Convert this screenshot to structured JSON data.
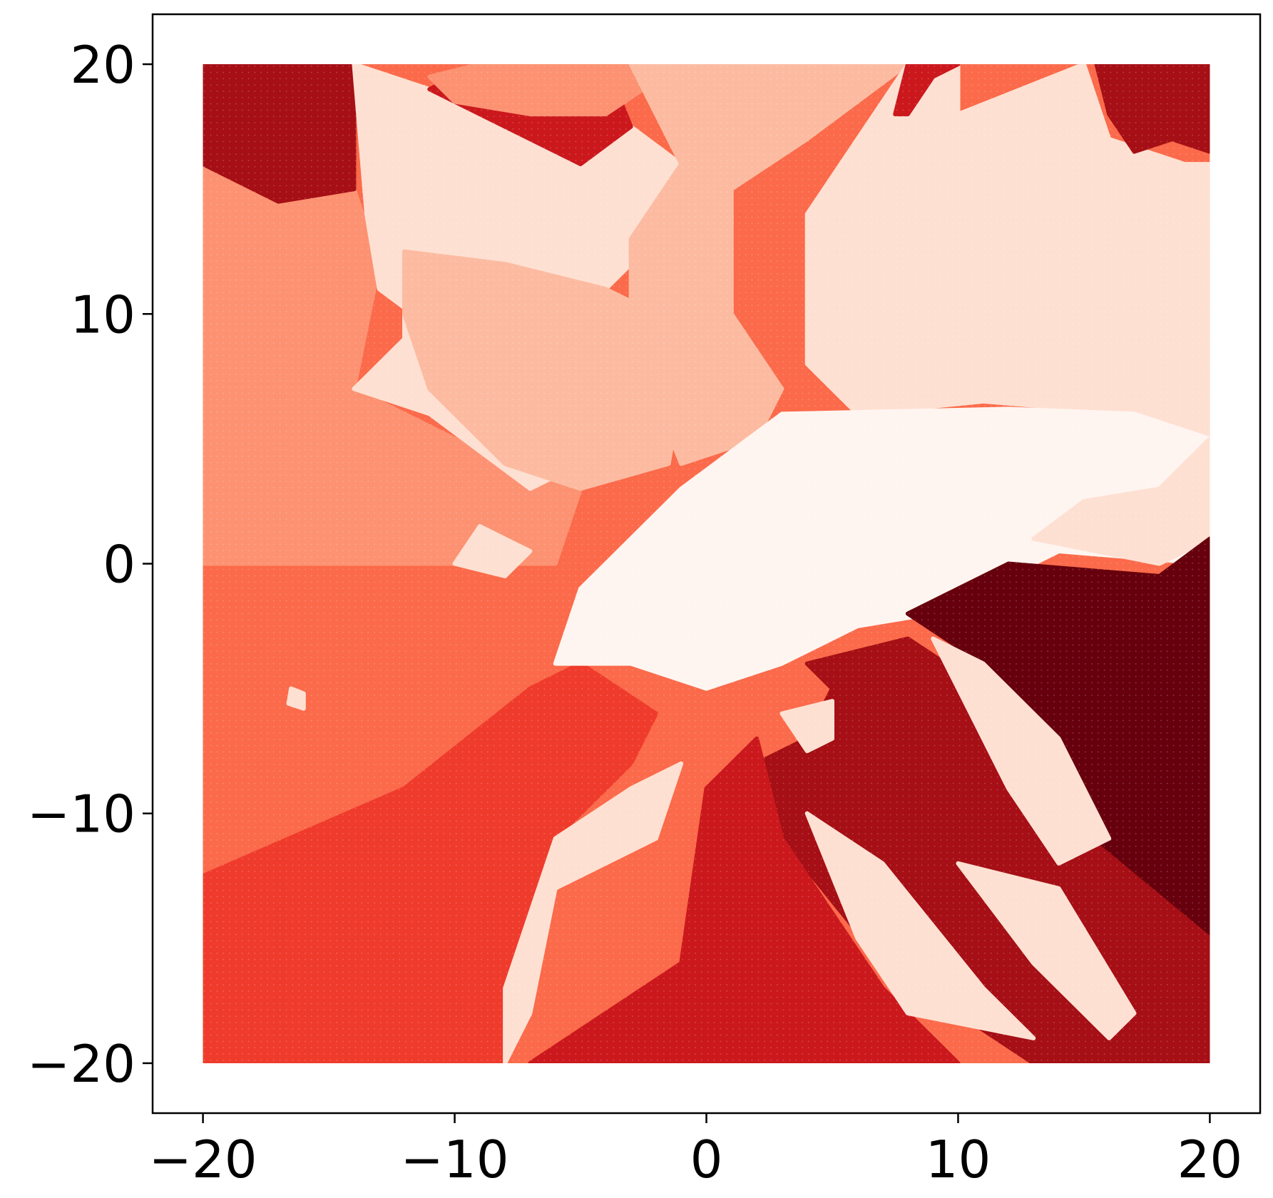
{
  "chart_data": {
    "type": "heatmap",
    "title": "",
    "xlabel": "",
    "ylabel": "",
    "xlim": [
      -22,
      22
    ],
    "ylim": [
      -22,
      22
    ],
    "grid": false,
    "legend": "none",
    "colormap": "Reds",
    "palette": [
      "#fff5f0",
      "#fee0d2",
      "#fcbba1",
      "#fc9272",
      "#fb6a4a",
      "#ef3b2c",
      "#cb181d",
      "#a50f15",
      "#67000d"
    ],
    "grid_extent": {
      "x": [
        -20,
        20
      ],
      "y": [
        -20,
        20
      ]
    },
    "x_ticks": [
      -20,
      -10,
      0,
      10,
      20
    ],
    "y_ticks": [
      -20,
      -10,
      0,
      10,
      20
    ],
    "x_tick_labels": [
      "−20",
      "−10",
      "0",
      "10",
      "20"
    ],
    "y_tick_labels": [
      "−20",
      "−10",
      "0",
      "10",
      "20"
    ],
    "regions": [
      {
        "level": 4,
        "polygon": [
          [
            -20,
            0
          ],
          [
            -7,
            0
          ],
          [
            -7,
            -5
          ],
          [
            -12,
            -9
          ],
          [
            -20,
            -12.5
          ]
        ]
      },
      {
        "level": 5,
        "polygon": [
          [
            -20,
            -12.5
          ],
          [
            -12,
            -9
          ],
          [
            -7,
            -5
          ],
          [
            -5,
            -4
          ],
          [
            -2,
            -6
          ],
          [
            -3,
            -8
          ],
          [
            -6,
            -11
          ],
          [
            -8,
            -17
          ],
          [
            -8,
            -20
          ],
          [
            -20,
            -20
          ]
        ]
      },
      {
        "level": 3,
        "polygon": [
          [
            -20,
            16
          ],
          [
            -14,
            15
          ],
          [
            -13,
            12
          ],
          [
            -14,
            7
          ],
          [
            -8,
            4
          ],
          [
            -5,
            3
          ],
          [
            -6,
            0
          ],
          [
            -20,
            0
          ]
        ]
      },
      {
        "level": 7,
        "polygon": [
          [
            -20,
            20
          ],
          [
            -14,
            20
          ],
          [
            -14,
            15
          ],
          [
            -17,
            14.5
          ],
          [
            -20,
            16
          ]
        ]
      },
      {
        "level": 1,
        "polygon": [
          [
            -14,
            20
          ],
          [
            -11,
            19
          ],
          [
            -7,
            17.5
          ],
          [
            -5,
            16
          ],
          [
            -3,
            17.5
          ],
          [
            -1,
            16
          ],
          [
            -2,
            13
          ],
          [
            -4,
            11
          ],
          [
            -8,
            12
          ],
          [
            -12,
            12.5
          ],
          [
            -12,
            9
          ],
          [
            -14,
            7
          ],
          [
            -11,
            6
          ],
          [
            -7,
            3
          ],
          [
            -5,
            4
          ],
          [
            -9,
            8
          ],
          [
            -13,
            11
          ],
          [
            -13.5,
            14
          ]
        ]
      },
      {
        "level": 2,
        "polygon": [
          [
            -12,
            12.5
          ],
          [
            -8,
            12
          ],
          [
            -4,
            11
          ],
          [
            -2,
            10
          ],
          [
            -1,
            7
          ],
          [
            -1.5,
            4
          ],
          [
            -5,
            3
          ],
          [
            -8,
            4
          ],
          [
            -11,
            7
          ],
          [
            -12,
            10
          ]
        ]
      },
      {
        "level": 6,
        "polygon": [
          [
            -11,
            19
          ],
          [
            -9,
            20
          ],
          [
            -4,
            20
          ],
          [
            -3,
            17.5
          ],
          [
            -5,
            16
          ],
          [
            -7,
            17
          ],
          [
            -9,
            18
          ]
        ]
      },
      {
        "level": 3,
        "polygon": [
          [
            -11,
            19.5
          ],
          [
            -9,
            20
          ],
          [
            -1,
            20
          ],
          [
            -4,
            18
          ],
          [
            -7,
            18
          ],
          [
            -10,
            18.5
          ]
        ]
      },
      {
        "level": 2,
        "polygon": [
          [
            -3,
            20
          ],
          [
            8,
            20
          ],
          [
            4,
            17
          ],
          [
            1,
            15
          ],
          [
            1,
            10
          ],
          [
            3,
            7
          ],
          [
            2,
            5
          ],
          [
            -1,
            4
          ],
          [
            -3,
            9
          ],
          [
            -3,
            13
          ],
          [
            -1,
            16
          ],
          [
            -2,
            18
          ]
        ]
      },
      {
        "level": 1,
        "polygon": [
          [
            8,
            20
          ],
          [
            10,
            20
          ],
          [
            10,
            18
          ],
          [
            15,
            20
          ],
          [
            16,
            17
          ],
          [
            19,
            16
          ],
          [
            20,
            16
          ],
          [
            20,
            5
          ],
          [
            17,
            6
          ],
          [
            11,
            6.5
          ],
          [
            6,
            6
          ],
          [
            4,
            8
          ],
          [
            4,
            11
          ],
          [
            4,
            14
          ],
          [
            6,
            17
          ]
        ]
      },
      {
        "level": 6,
        "polygon": [
          [
            7.5,
            18
          ],
          [
            8,
            20
          ],
          [
            10,
            20
          ],
          [
            9,
            19.5
          ],
          [
            8,
            18
          ]
        ]
      },
      {
        "level": 7,
        "polygon": [
          [
            15.5,
            20
          ],
          [
            20,
            20
          ],
          [
            20,
            16.5
          ],
          [
            18.5,
            17
          ],
          [
            17,
            16.5
          ],
          [
            16,
            18
          ]
        ]
      },
      {
        "level": 0,
        "polygon": [
          [
            3,
            6
          ],
          [
            12,
            6.2
          ],
          [
            17,
            6
          ],
          [
            20,
            5
          ],
          [
            20,
            0
          ],
          [
            14,
            0.5
          ],
          [
            9,
            -2
          ],
          [
            6,
            -2.5
          ],
          [
            3,
            -4
          ],
          [
            0,
            -5
          ],
          [
            -3,
            -4
          ],
          [
            -6,
            -4
          ],
          [
            -5,
            -1
          ],
          [
            -3,
            1
          ],
          [
            -1,
            3
          ]
        ]
      },
      {
        "level": 1,
        "polygon": [
          [
            13,
            1
          ],
          [
            18,
            0
          ],
          [
            20,
            1
          ],
          [
            20,
            5
          ],
          [
            18,
            3
          ],
          [
            15,
            2.5
          ]
        ]
      },
      {
        "level": 8,
        "polygon": [
          [
            8,
            -2
          ],
          [
            12,
            0
          ],
          [
            18,
            -0.5
          ],
          [
            20,
            1
          ],
          [
            20,
            -15
          ],
          [
            14,
            -10
          ],
          [
            11,
            -4
          ]
        ]
      },
      {
        "level": 7,
        "polygon": [
          [
            4,
            -4
          ],
          [
            8,
            -3
          ],
          [
            11,
            -5
          ],
          [
            14,
            -10
          ],
          [
            20,
            -15
          ],
          [
            20,
            -20
          ],
          [
            13,
            -20
          ],
          [
            7,
            -16
          ],
          [
            3,
            -11
          ],
          [
            2,
            -8
          ],
          [
            4,
            -7
          ],
          [
            5,
            -5
          ]
        ]
      },
      {
        "level": 6,
        "polygon": [
          [
            -7,
            -20
          ],
          [
            -4,
            -18
          ],
          [
            -1,
            -16
          ],
          [
            0,
            -9
          ],
          [
            2,
            -7
          ],
          [
            3,
            -11
          ],
          [
            7,
            -17
          ],
          [
            10,
            -20
          ]
        ]
      },
      {
        "level": 1,
        "polygon": [
          [
            -8,
            -20
          ],
          [
            -7,
            -18
          ],
          [
            -6,
            -13
          ],
          [
            -2,
            -11
          ],
          [
            -1,
            -8
          ],
          [
            -3,
            -9
          ],
          [
            -6,
            -11
          ],
          [
            -7,
            -14
          ],
          [
            -8,
            -17
          ]
        ]
      },
      {
        "level": 1,
        "polygon": [
          [
            4,
            -10
          ],
          [
            7,
            -12
          ],
          [
            11,
            -17
          ],
          [
            13,
            -19
          ],
          [
            8,
            -18
          ],
          [
            6,
            -15
          ]
        ]
      },
      {
        "level": 1,
        "polygon": [
          [
            9,
            -3
          ],
          [
            11,
            -4
          ],
          [
            14,
            -7
          ],
          [
            16,
            -11
          ],
          [
            14,
            -12
          ],
          [
            12,
            -9
          ],
          [
            10,
            -5
          ]
        ]
      },
      {
        "level": 1,
        "polygon": [
          [
            10,
            -12
          ],
          [
            14,
            -13
          ],
          [
            17,
            -18
          ],
          [
            16,
            -19
          ],
          [
            13,
            -16
          ]
        ]
      },
      {
        "level": 1,
        "polygon": [
          [
            -10,
            0
          ],
          [
            -8,
            -0.5
          ],
          [
            -7,
            0.5
          ],
          [
            -9,
            1.5
          ]
        ]
      },
      {
        "level": 1,
        "polygon": [
          [
            3,
            -6
          ],
          [
            5,
            -5.5
          ],
          [
            5,
            -7
          ],
          [
            4,
            -7.5
          ]
        ]
      },
      {
        "level": 1,
        "polygon": [
          [
            -16.5,
            -5
          ],
          [
            -16,
            -5.2
          ],
          [
            -16,
            -5.8
          ],
          [
            -16.6,
            -5.6
          ]
        ]
      }
    ]
  }
}
